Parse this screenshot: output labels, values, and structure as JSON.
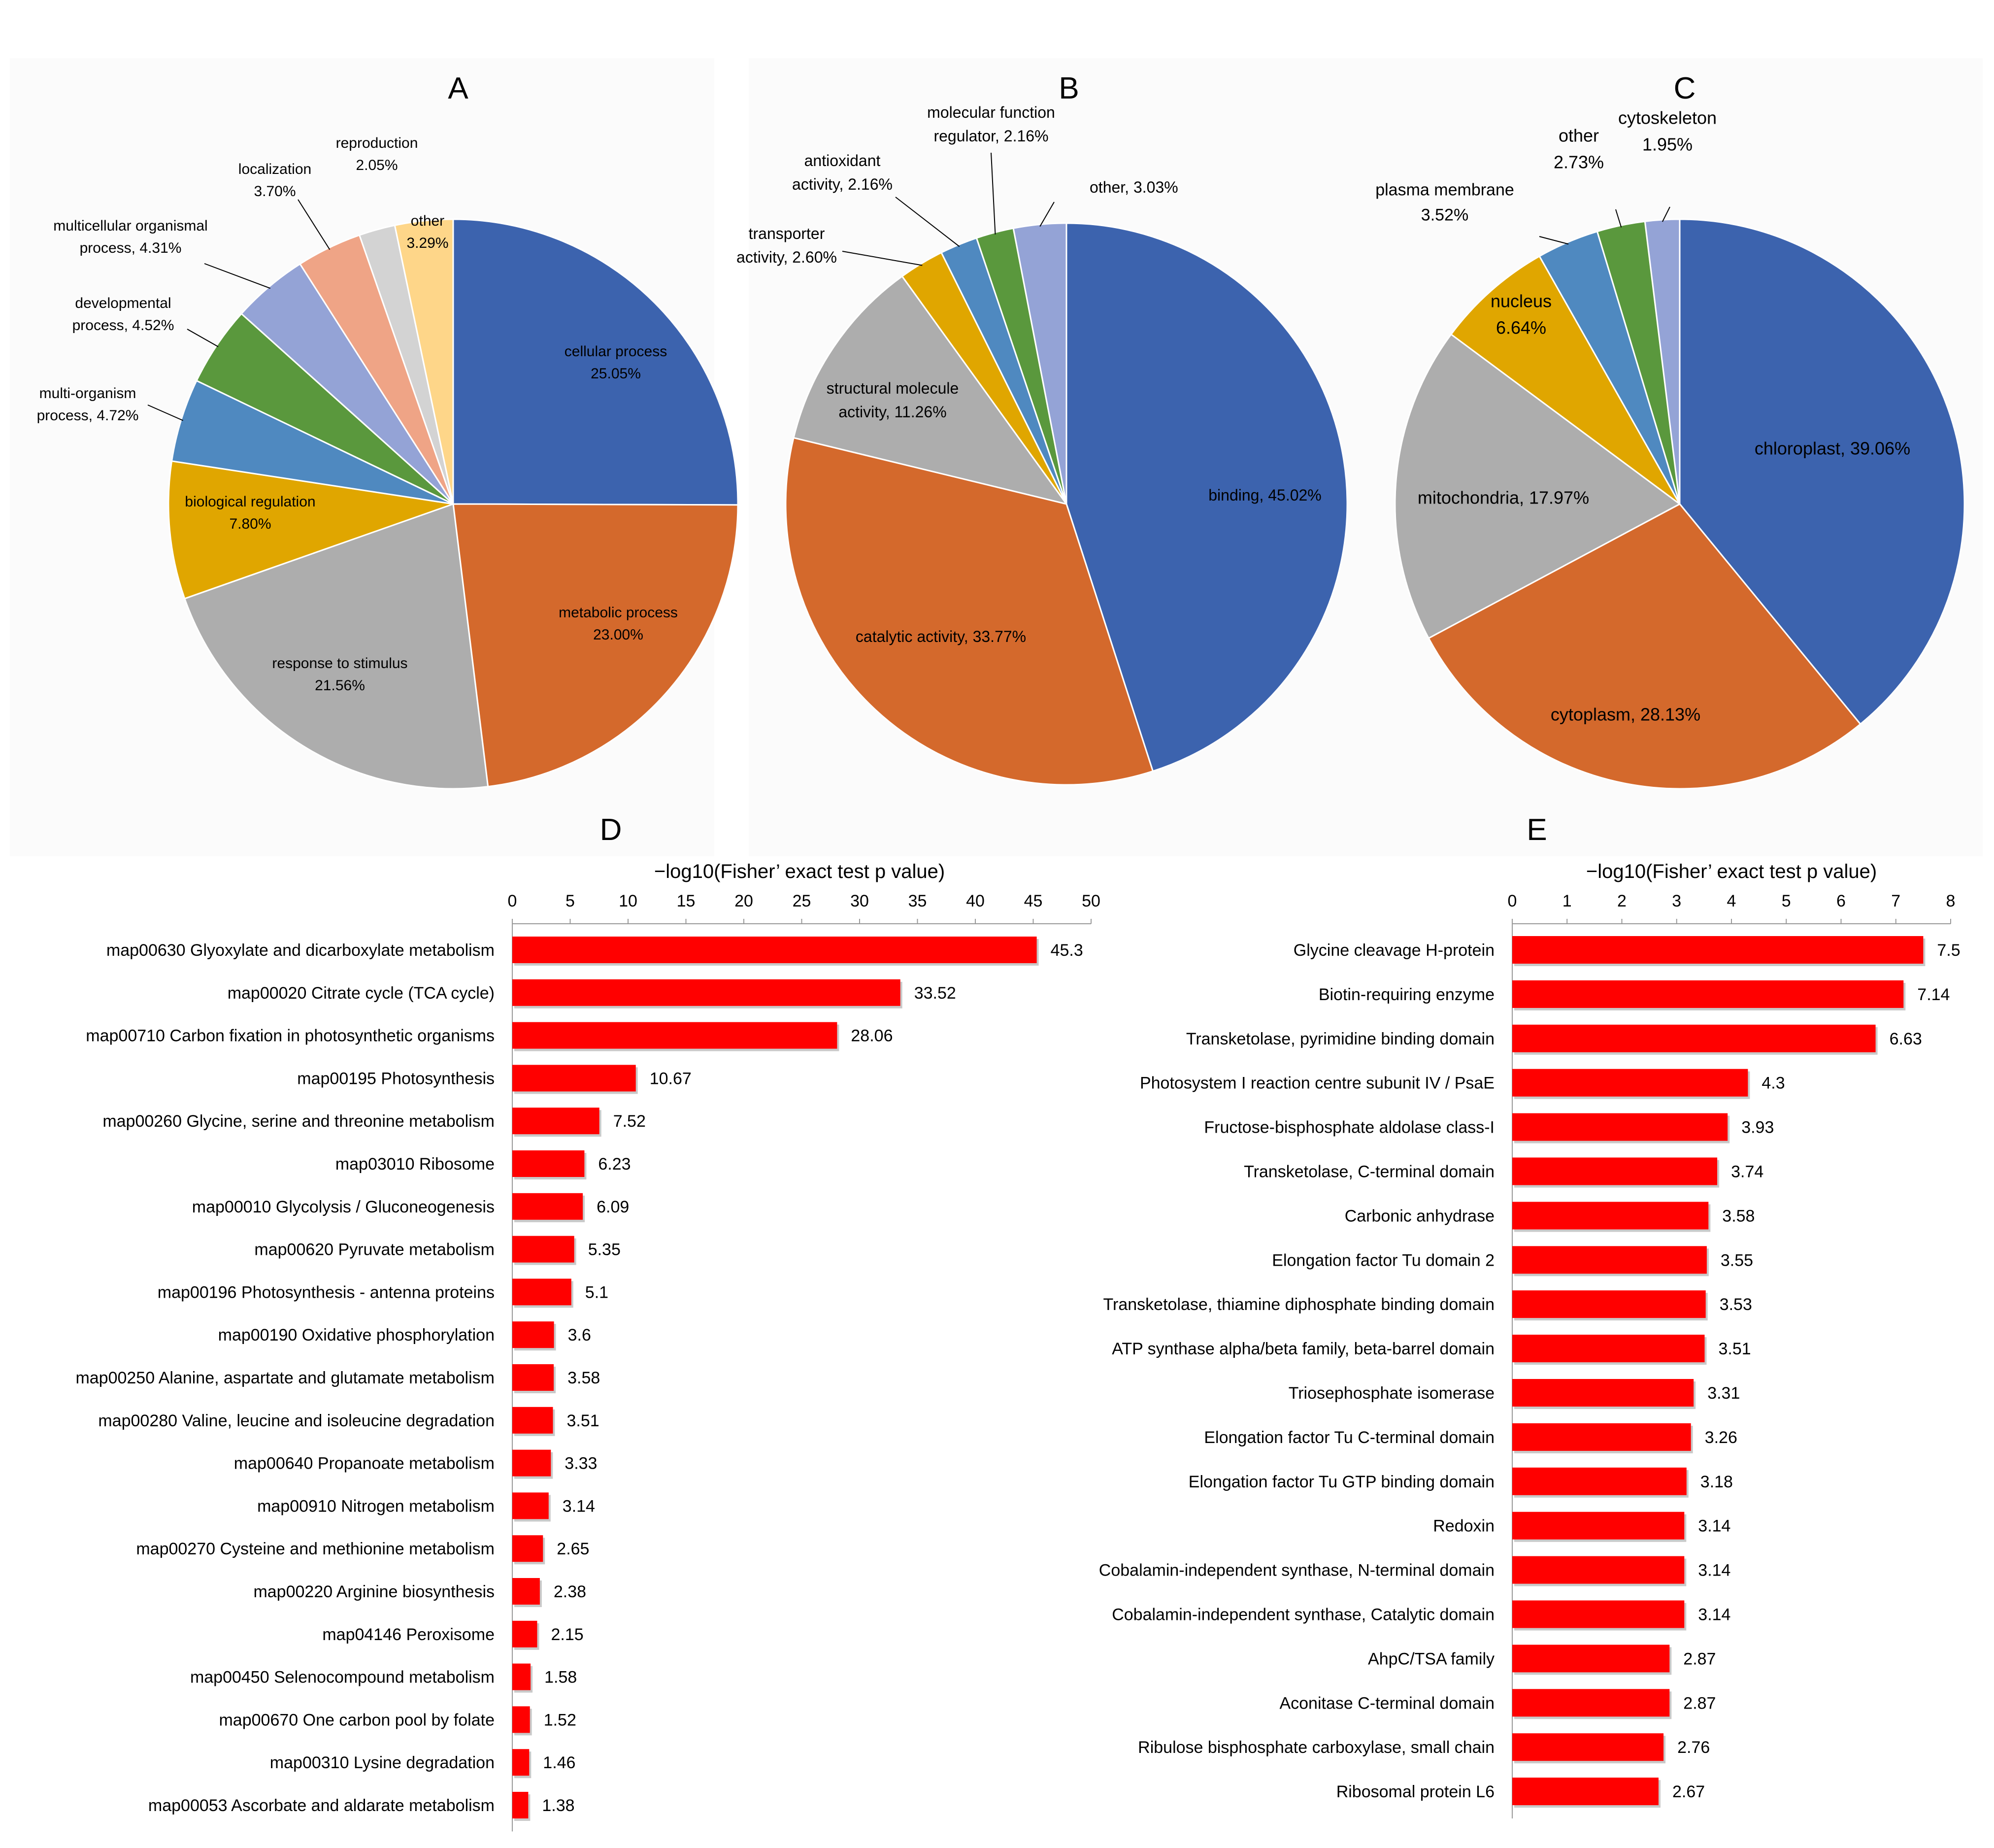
{
  "colors": {
    "blue": "#3C63AE",
    "orange": "#D4692C",
    "gray": "#ADADAD",
    "gold": "#E0A600",
    "steel_blue": "#4F89C0",
    "green": "#5A983D",
    "lavender": "#94A3D6",
    "salmon": "#EFA486",
    "light_gray": "#D3D3D3",
    "light_orange": "#FED689",
    "bar_red": "#FF0000"
  },
  "chart_data": [
    {
      "panel": "A",
      "type": "pie",
      "title": "A",
      "slices": [
        {
          "label_lines": [
            "cellular process",
            "25.05%"
          ],
          "value": 25.05,
          "color": "blue",
          "label_inside": true
        },
        {
          "label_lines": [
            "metabolic process",
            "23.00%"
          ],
          "value": 23.0,
          "color": "orange",
          "label_inside": true
        },
        {
          "label_lines": [
            "response to stimulus",
            "21.56%"
          ],
          "value": 21.56,
          "color": "gray",
          "label_inside": true
        },
        {
          "label_lines": [
            "biological regulation",
            "7.80%"
          ],
          "value": 7.8,
          "color": "gold",
          "label_inside": true
        },
        {
          "label_lines": [
            "multi-organism",
            "process, 4.72%"
          ],
          "value": 4.72,
          "color": "steel_blue",
          "label_inside": false
        },
        {
          "label_lines": [
            "developmental",
            "process, 4.52%"
          ],
          "value": 4.52,
          "color": "green",
          "label_inside": false
        },
        {
          "label_lines": [
            "multicellular organismal",
            "process, 4.31%"
          ],
          "value": 4.31,
          "color": "lavender",
          "label_inside": false
        },
        {
          "label_lines": [
            "localization",
            "3.70%"
          ],
          "value": 3.7,
          "color": "salmon",
          "label_inside": false
        },
        {
          "label_lines": [
            "reproduction",
            "2.05%"
          ],
          "value": 2.05,
          "color": "light_gray",
          "label_inside": false
        },
        {
          "label_lines": [
            "other",
            "3.29%"
          ],
          "value": 3.29,
          "color": "light_orange",
          "label_inside": true
        }
      ]
    },
    {
      "panel": "B",
      "type": "pie",
      "title": "B",
      "slices": [
        {
          "label_lines": [
            "binding, 45.02%"
          ],
          "value": 45.02,
          "color": "blue",
          "label_inside": true
        },
        {
          "label_lines": [
            "catalytic activity, 33.77%"
          ],
          "value": 33.77,
          "color": "orange",
          "label_inside": true
        },
        {
          "label_lines": [
            "structural molecule",
            "activity, 11.26%"
          ],
          "value": 11.26,
          "color": "gray",
          "label_inside": true
        },
        {
          "label_lines": [
            "transporter",
            "activity, 2.60%"
          ],
          "value": 2.6,
          "color": "gold",
          "label_inside": false
        },
        {
          "label_lines": [
            "antioxidant",
            "activity, 2.16%"
          ],
          "value": 2.16,
          "color": "steel_blue",
          "label_inside": false
        },
        {
          "label_lines": [
            "molecular function",
            "regulator, 2.16%"
          ],
          "value": 2.16,
          "color": "green",
          "label_inside": false
        },
        {
          "label_lines": [
            "other, 3.03%"
          ],
          "value": 3.03,
          "color": "lavender",
          "label_inside": false
        }
      ]
    },
    {
      "panel": "C",
      "type": "pie",
      "title": "C",
      "slices": [
        {
          "label_lines": [
            "chloroplast, 39.06%"
          ],
          "value": 39.06,
          "color": "blue",
          "label_inside": true
        },
        {
          "label_lines": [
            "cytoplasm, 28.13%"
          ],
          "value": 28.13,
          "color": "orange",
          "label_inside": true
        },
        {
          "label_lines": [
            "mitochondria, 17.97%"
          ],
          "value": 17.97,
          "color": "gray",
          "label_inside": true
        },
        {
          "label_lines": [
            "nucleus",
            "6.64%"
          ],
          "value": 6.64,
          "color": "gold",
          "label_inside": true
        },
        {
          "label_lines": [
            "plasma membrane",
            "3.52%"
          ],
          "value": 3.52,
          "color": "steel_blue",
          "label_inside": false
        },
        {
          "label_lines": [
            "other",
            "2.73%"
          ],
          "value": 2.73,
          "color": "green",
          "label_inside": false
        },
        {
          "label_lines": [
            "cytoskeleton",
            "1.95%"
          ],
          "value": 1.95,
          "color": "lavender",
          "label_inside": false
        }
      ]
    },
    {
      "panel": "D",
      "type": "bar",
      "orientation": "horizontal",
      "title": "D",
      "xlabel": "−log10(Fisher’ exact test p value)",
      "xlim": [
        0,
        50
      ],
      "ticks": [
        0,
        5,
        10,
        15,
        20,
        25,
        30,
        35,
        40,
        45,
        50
      ],
      "categories": [
        "map00630 Glyoxylate and dicarboxylate metabolism",
        "map00020 Citrate cycle (TCA cycle)",
        "map00710 Carbon fixation in photosynthetic organisms",
        "map00195 Photosynthesis",
        "map00260 Glycine, serine and threonine metabolism",
        "map03010 Ribosome",
        "map00010 Glycolysis / Gluconeogenesis",
        "map00620 Pyruvate metabolism",
        "map00196 Photosynthesis - antenna proteins",
        "map00190 Oxidative phosphorylation",
        "map00250 Alanine, aspartate and glutamate metabolism",
        "map00280 Valine, leucine and isoleucine degradation",
        "map00640 Propanoate metabolism",
        "map00910 Nitrogen metabolism",
        "map00270 Cysteine and methionine metabolism",
        "map00220 Arginine biosynthesis",
        "map04146 Peroxisome",
        "map00450 Selenocompound metabolism",
        "map00670 One carbon pool by folate",
        "map00310 Lysine degradation",
        "map00053 Ascorbate and aldarate metabolism"
      ],
      "values": [
        45.3,
        33.52,
        28.06,
        10.67,
        7.52,
        6.23,
        6.09,
        5.35,
        5.1,
        3.6,
        3.58,
        3.51,
        3.33,
        3.14,
        2.65,
        2.38,
        2.15,
        1.58,
        1.52,
        1.46,
        1.38
      ],
      "value_labels": [
        "45.3",
        "33.52",
        "28.06",
        "10.67",
        "7.52",
        "6.23",
        "6.09",
        "5.35",
        "5.1",
        "3.6",
        "3.58",
        "3.51",
        "3.33",
        "3.14",
        "2.65",
        "2.38",
        "2.15",
        "1.58",
        "1.52",
        "1.46",
        "1.38"
      ]
    },
    {
      "panel": "E",
      "type": "bar",
      "orientation": "horizontal",
      "title": "E",
      "xlabel": "−log10(Fisher’ exact test p value)",
      "xlim": [
        0,
        8
      ],
      "ticks": [
        0,
        1,
        2,
        3,
        4,
        5,
        6,
        7,
        8
      ],
      "categories": [
        "Glycine cleavage H-protein",
        "Biotin-requiring enzyme",
        "Transketolase, pyrimidine binding domain",
        "Photosystem I reaction centre subunit IV / PsaE",
        "Fructose-bisphosphate aldolase class-I",
        "Transketolase, C-terminal domain",
        "Carbonic anhydrase",
        "Elongation factor Tu domain 2",
        "Transketolase, thiamine diphosphate binding domain",
        "ATP synthase alpha/beta family, beta-barrel domain",
        "Triosephosphate isomerase",
        "Elongation factor Tu C-terminal domain",
        "Elongation factor Tu GTP binding domain",
        "Redoxin",
        "Cobalamin-independent synthase, N-terminal domain",
        "Cobalamin-independent synthase, Catalytic domain",
        "AhpC/TSA family",
        "Aconitase C-terminal domain",
        "Ribulose bisphosphate carboxylase, small chain",
        "Ribosomal protein L6"
      ],
      "values": [
        7.5,
        7.14,
        6.63,
        4.3,
        3.93,
        3.74,
        3.58,
        3.55,
        3.53,
        3.51,
        3.31,
        3.26,
        3.18,
        3.14,
        3.14,
        3.14,
        2.87,
        2.87,
        2.76,
        2.67
      ],
      "value_labels": [
        "7.5",
        "7.14",
        "6.63",
        "4.3",
        "3.93",
        "3.74",
        "3.58",
        "3.55",
        "3.53",
        "3.51",
        "3.31",
        "3.26",
        "3.18",
        "3.14",
        "3.14",
        "3.14",
        "2.87",
        "2.87",
        "2.76",
        "2.67"
      ]
    }
  ]
}
